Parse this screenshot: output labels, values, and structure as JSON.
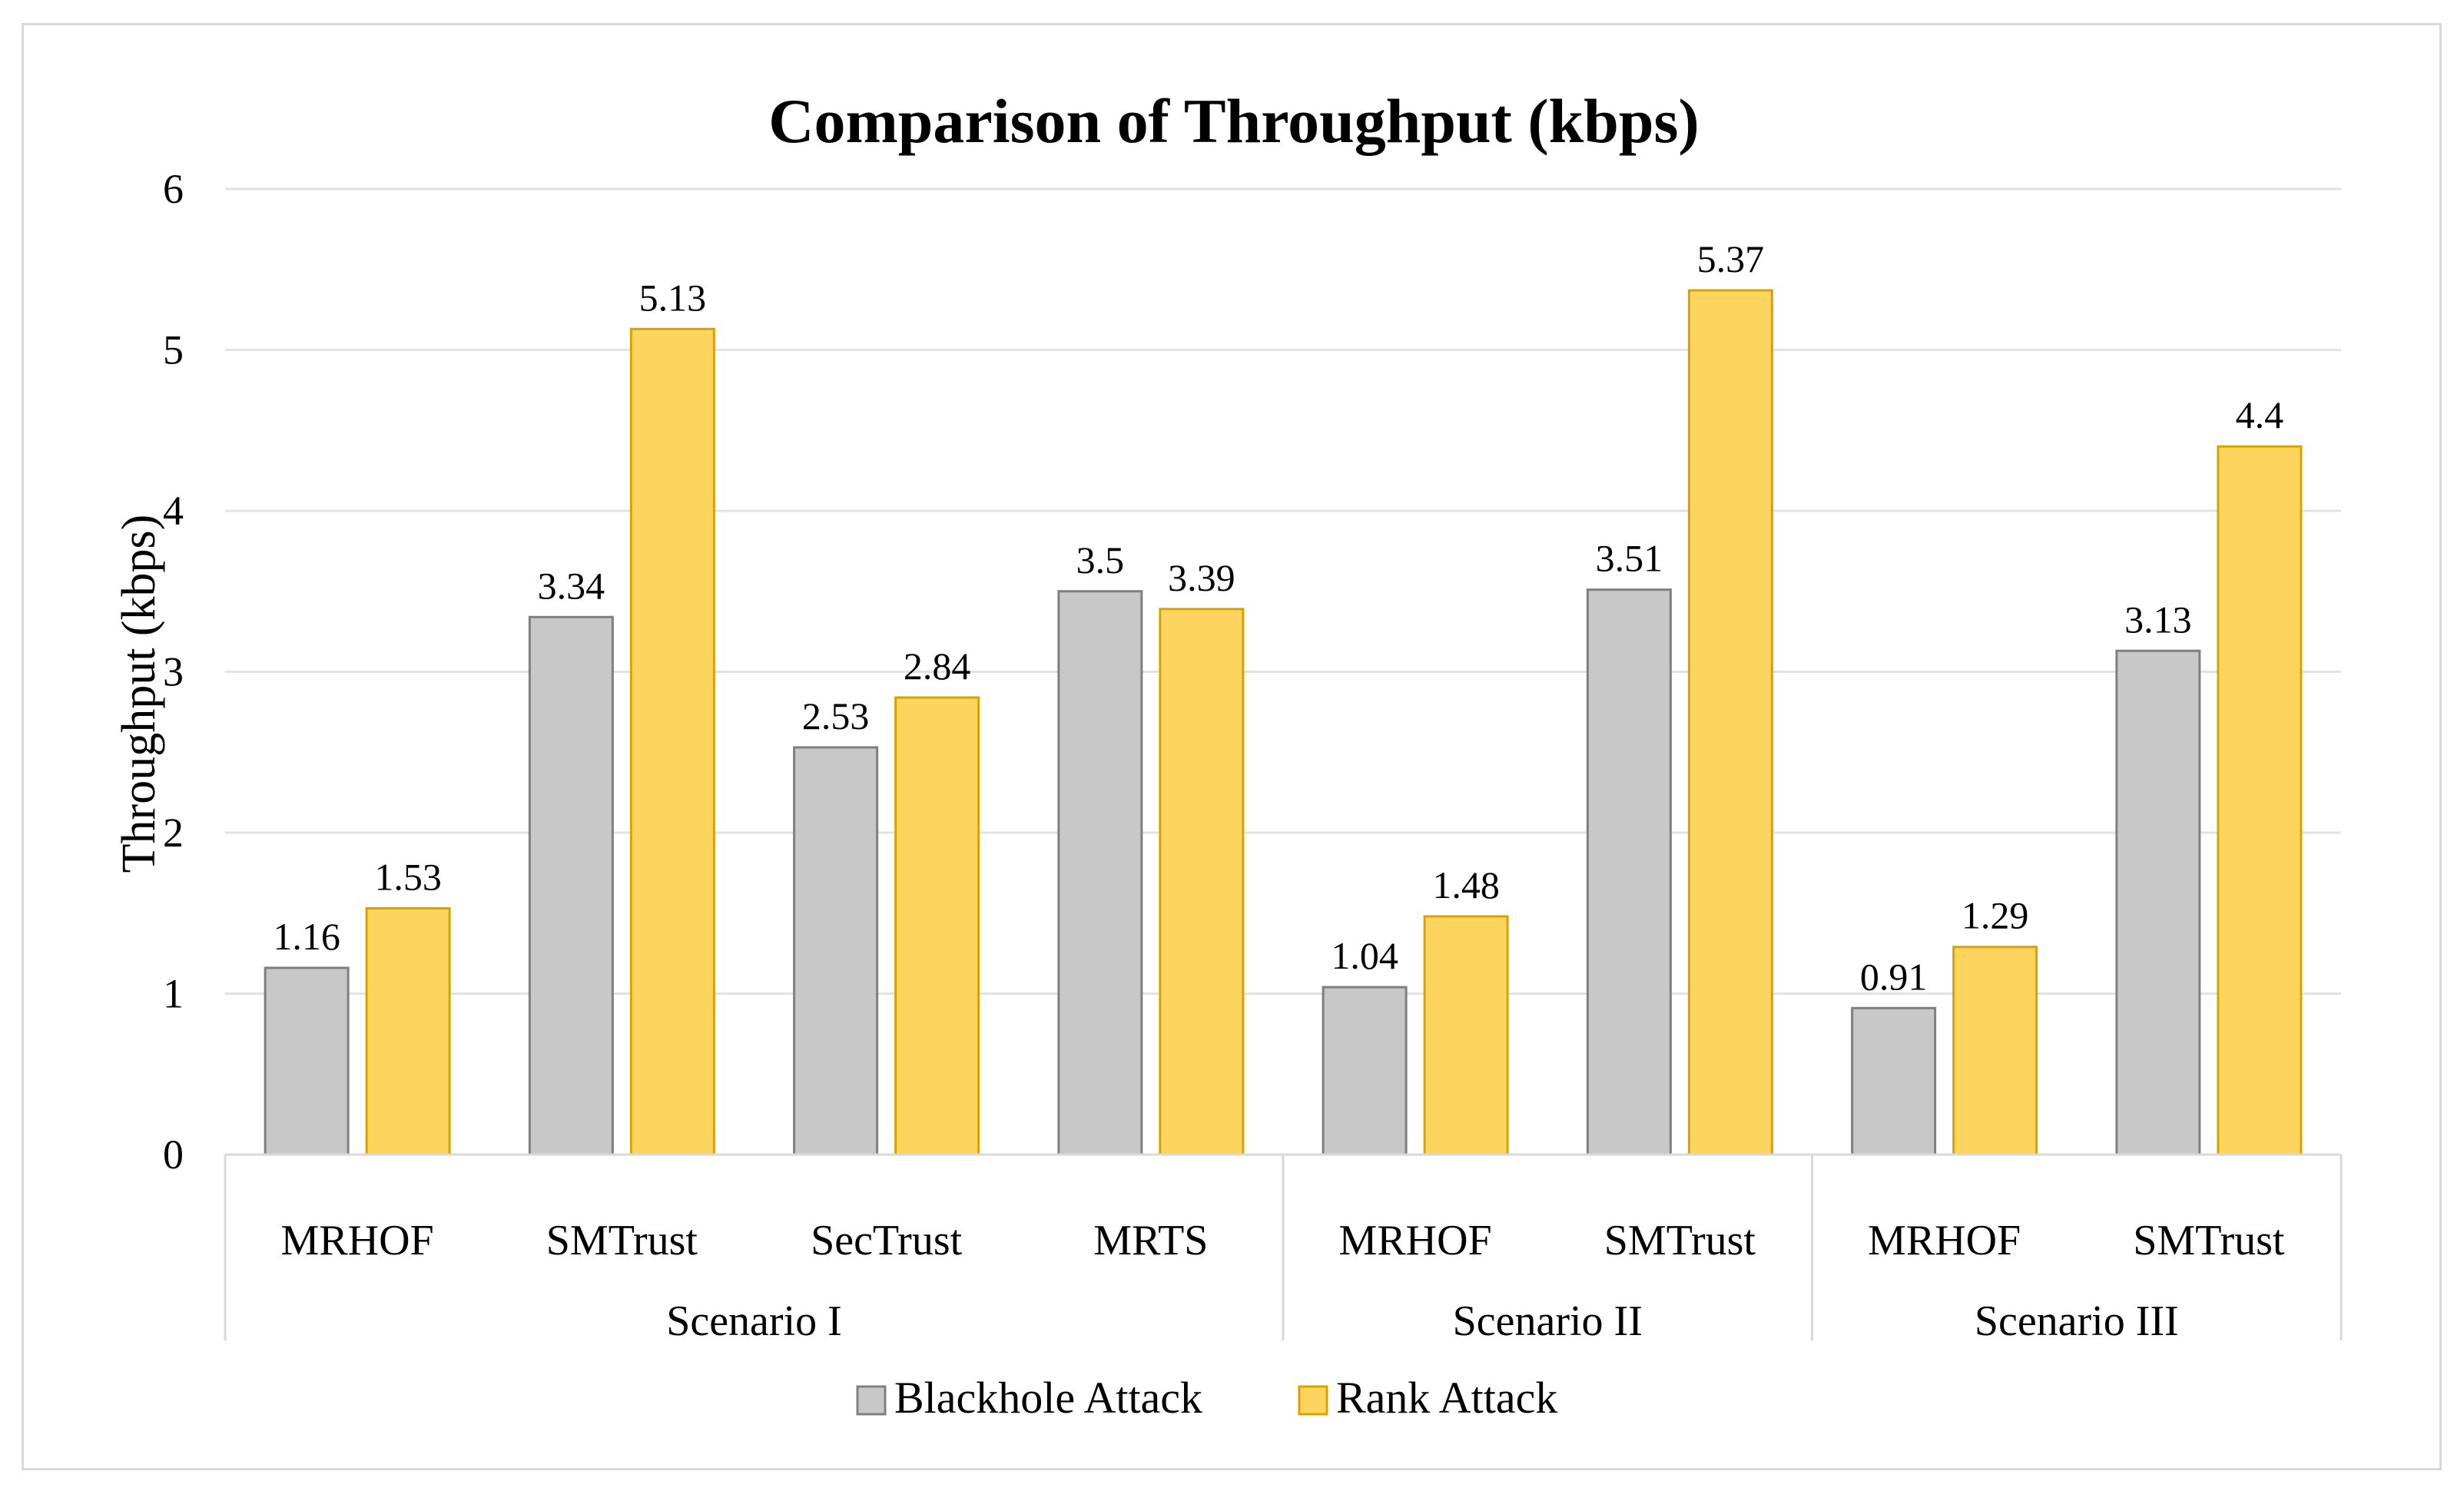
{
  "chart_data": {
    "type": "bar",
    "title": "Comparison of Throughput (kbps)",
    "ylabel": "Throughput (kbps)",
    "xlabel": "",
    "ylim": [
      0,
      6
    ],
    "yticks": [
      "0",
      "1",
      "2",
      "3",
      "4",
      "5",
      "6"
    ],
    "grid": true,
    "legend_position": "bottom",
    "categories": [
      "MRHOF",
      "SMTrust",
      "SecTrust",
      "MRTS",
      "MRHOF",
      "SMTrust",
      "MRHOF",
      "SMTrust"
    ],
    "groups": [
      {
        "label": "Scenario I",
        "count": 4
      },
      {
        "label": "Scenario II",
        "count": 2
      },
      {
        "label": "Scenario III",
        "count": 2
      }
    ],
    "series": [
      {
        "name": "Blackhole Attack",
        "color": "#c8c8c8",
        "stroke": "#7f7f7f",
        "values": [
          1.16,
          3.34,
          2.53,
          3.5,
          1.04,
          3.51,
          0.91,
          3.13
        ],
        "labels": [
          "1.16",
          "3.34",
          "2.53",
          "3.5",
          "1.04",
          "3.51",
          "0.91",
          "3.13"
        ]
      },
      {
        "name": "Rank Attack",
        "color": "#fdd45e",
        "stroke": "#d8a300",
        "values": [
          1.53,
          5.13,
          2.84,
          3.39,
          1.48,
          5.37,
          1.29,
          4.4
        ],
        "labels": [
          "1.53",
          "5.13",
          "2.84",
          "3.39",
          "1.48",
          "5.37",
          "1.29",
          "4.4"
        ]
      }
    ]
  }
}
